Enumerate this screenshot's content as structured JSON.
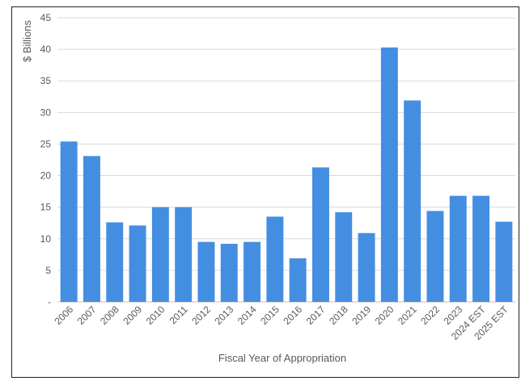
{
  "chart_data": {
    "type": "bar",
    "title": "",
    "xlabel": "Fiscal Year of Appropriation",
    "ylabel": "$ Billions",
    "categories": [
      "2006",
      "2007",
      "2008",
      "2009",
      "2010",
      "2011",
      "2012",
      "2013",
      "2014",
      "2015",
      "2016",
      "2017",
      "2018",
      "2019",
      "2020",
      "2021",
      "2022",
      "2023",
      "2024 EST",
      "2025 EST"
    ],
    "values": [
      25.4,
      23.1,
      12.6,
      12.1,
      15.0,
      15.0,
      9.5,
      9.2,
      9.5,
      13.5,
      6.9,
      21.3,
      14.2,
      10.9,
      40.3,
      31.9,
      14.4,
      16.8,
      16.8,
      12.7
    ],
    "ylim": [
      0,
      45
    ],
    "yticks": [
      0,
      5,
      10,
      15,
      20,
      25,
      30,
      35,
      40,
      45
    ],
    "ytick_labels": [
      "-",
      "5",
      "10",
      "15",
      "20",
      "25",
      "30",
      "35",
      "40",
      "45"
    ],
    "grid": true,
    "legend": "none",
    "bar_color": "#448ee2",
    "grid_color": "#d9d9d9"
  }
}
